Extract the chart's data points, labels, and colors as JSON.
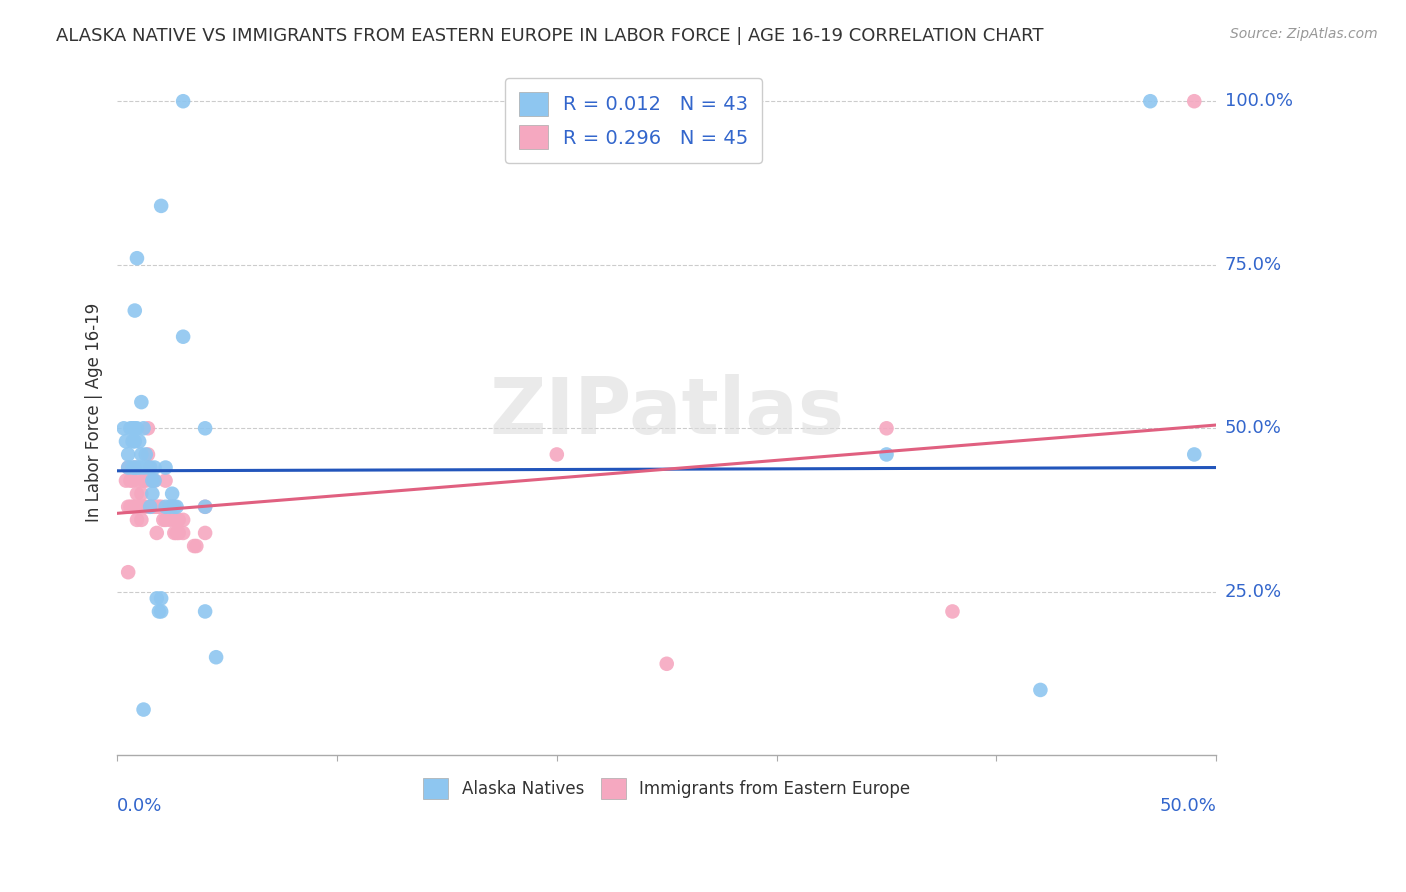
{
  "title": "ALASKA NATIVE VS IMMIGRANTS FROM EASTERN EUROPE IN LABOR FORCE | AGE 16-19 CORRELATION CHART",
  "source": "Source: ZipAtlas.com",
  "ylabel": "In Labor Force | Age 16-19",
  "ylabel_right_ticks": [
    "100.0%",
    "75.0%",
    "50.0%",
    "25.0%"
  ],
  "ylabel_right_vals": [
    1.0,
    0.75,
    0.5,
    0.25
  ],
  "xlim": [
    0.0,
    0.5
  ],
  "ylim": [
    0.0,
    1.05
  ],
  "color_blue": "#8EC6F0",
  "color_pink": "#F5A8C0",
  "trendline_blue": "#2255BB",
  "trendline_pink": "#E06080",
  "watermark": "ZIPatlas",
  "blue_trendline": [
    [
      0.0,
      0.435
    ],
    [
      0.5,
      0.44
    ]
  ],
  "pink_trendline": [
    [
      0.0,
      0.37
    ],
    [
      0.5,
      0.505
    ]
  ],
  "blue_scatter": [
    [
      0.003,
      0.5
    ],
    [
      0.004,
      0.48
    ],
    [
      0.005,
      0.46
    ],
    [
      0.005,
      0.44
    ],
    [
      0.006,
      0.5
    ],
    [
      0.007,
      0.5
    ],
    [
      0.007,
      0.44
    ],
    [
      0.007,
      0.48
    ],
    [
      0.008,
      0.48
    ],
    [
      0.008,
      0.5
    ],
    [
      0.008,
      0.44
    ],
    [
      0.009,
      0.5
    ],
    [
      0.009,
      0.44
    ],
    [
      0.01,
      0.44
    ],
    [
      0.01,
      0.48
    ],
    [
      0.011,
      0.54
    ],
    [
      0.011,
      0.46
    ],
    [
      0.012,
      0.5
    ],
    [
      0.012,
      0.44
    ],
    [
      0.013,
      0.46
    ],
    [
      0.014,
      0.44
    ],
    [
      0.015,
      0.44
    ],
    [
      0.015,
      0.38
    ],
    [
      0.016,
      0.42
    ],
    [
      0.016,
      0.4
    ],
    [
      0.017,
      0.44
    ],
    [
      0.017,
      0.42
    ],
    [
      0.018,
      0.24
    ],
    [
      0.019,
      0.22
    ],
    [
      0.02,
      0.24
    ],
    [
      0.02,
      0.22
    ],
    [
      0.022,
      0.44
    ],
    [
      0.022,
      0.38
    ],
    [
      0.024,
      0.38
    ],
    [
      0.025,
      0.4
    ],
    [
      0.026,
      0.38
    ],
    [
      0.027,
      0.38
    ],
    [
      0.008,
      0.68
    ],
    [
      0.009,
      0.76
    ],
    [
      0.02,
      0.84
    ],
    [
      0.03,
      0.64
    ],
    [
      0.03,
      1.0
    ],
    [
      0.012,
      0.07
    ],
    [
      0.04,
      0.5
    ],
    [
      0.04,
      0.38
    ],
    [
      0.04,
      0.22
    ],
    [
      0.045,
      0.15
    ],
    [
      0.35,
      0.46
    ],
    [
      0.42,
      0.1
    ],
    [
      0.47,
      1.0
    ],
    [
      0.49,
      0.46
    ]
  ],
  "pink_scatter": [
    [
      0.004,
      0.42
    ],
    [
      0.005,
      0.38
    ],
    [
      0.005,
      0.44
    ],
    [
      0.006,
      0.42
    ],
    [
      0.006,
      0.38
    ],
    [
      0.007,
      0.42
    ],
    [
      0.007,
      0.38
    ],
    [
      0.008,
      0.44
    ],
    [
      0.008,
      0.38
    ],
    [
      0.009,
      0.4
    ],
    [
      0.009,
      0.36
    ],
    [
      0.01,
      0.42
    ],
    [
      0.01,
      0.38
    ],
    [
      0.011,
      0.4
    ],
    [
      0.011,
      0.36
    ],
    [
      0.012,
      0.42
    ],
    [
      0.012,
      0.38
    ],
    [
      0.013,
      0.42
    ],
    [
      0.013,
      0.38
    ],
    [
      0.014,
      0.5
    ],
    [
      0.014,
      0.46
    ],
    [
      0.015,
      0.44
    ],
    [
      0.015,
      0.38
    ],
    [
      0.016,
      0.42
    ],
    [
      0.016,
      0.38
    ],
    [
      0.017,
      0.42
    ],
    [
      0.017,
      0.38
    ],
    [
      0.018,
      0.38
    ],
    [
      0.018,
      0.34
    ],
    [
      0.019,
      0.38
    ],
    [
      0.02,
      0.38
    ],
    [
      0.021,
      0.36
    ],
    [
      0.022,
      0.42
    ],
    [
      0.022,
      0.36
    ],
    [
      0.024,
      0.36
    ],
    [
      0.025,
      0.38
    ],
    [
      0.026,
      0.36
    ],
    [
      0.026,
      0.34
    ],
    [
      0.027,
      0.36
    ],
    [
      0.027,
      0.34
    ],
    [
      0.028,
      0.36
    ],
    [
      0.028,
      0.34
    ],
    [
      0.03,
      0.36
    ],
    [
      0.03,
      0.34
    ],
    [
      0.035,
      0.32
    ],
    [
      0.036,
      0.32
    ],
    [
      0.04,
      0.38
    ],
    [
      0.04,
      0.34
    ],
    [
      0.005,
      0.28
    ],
    [
      0.2,
      0.46
    ],
    [
      0.25,
      0.14
    ],
    [
      0.35,
      0.5
    ],
    [
      0.38,
      0.22
    ],
    [
      0.49,
      1.0
    ]
  ]
}
